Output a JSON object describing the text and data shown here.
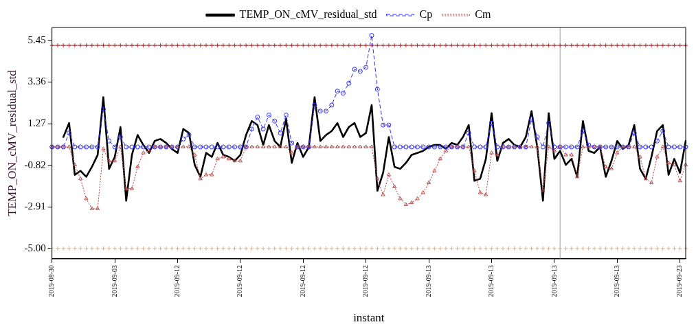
{
  "chart_data": {
    "type": "line",
    "xlabel": "instant",
    "ylabel": "TEMP_ON_cMV_residual_std",
    "categories": [
      "2019-08-30",
      null,
      null,
      null,
      null,
      null,
      null,
      null,
      null,
      null,
      null,
      "2019-09-03",
      null,
      null,
      null,
      null,
      null,
      null,
      null,
      null,
      null,
      null,
      "2019-09-12",
      null,
      null,
      null,
      null,
      null,
      null,
      null,
      null,
      null,
      null,
      "2019-09-12",
      null,
      null,
      null,
      null,
      null,
      null,
      null,
      null,
      null,
      null,
      "2019-09-12",
      null,
      null,
      null,
      null,
      null,
      null,
      null,
      null,
      null,
      null,
      "2019-09-12",
      null,
      null,
      null,
      null,
      null,
      null,
      null,
      null,
      null,
      null,
      "2019-09-13",
      null,
      null,
      null,
      null,
      null,
      null,
      null,
      null,
      null,
      null,
      "2019-09-13",
      null,
      null,
      null,
      null,
      null,
      null,
      null,
      null,
      null,
      null,
      "2019-09-13",
      null,
      null,
      null,
      null,
      null,
      null,
      null,
      null,
      null,
      null,
      "2019-09-13",
      null,
      null,
      null,
      null,
      null,
      null,
      null,
      null,
      null,
      null,
      "2019-09-23",
      null
    ],
    "ylim": [
      -5.52,
      6.1
    ],
    "yticks": [
      5.45,
      3.36,
      1.27,
      -0.82,
      -2.91,
      {
        "value": -5,
        "label": "-5.00"
      }
    ],
    "legend": "top",
    "grid": false,
    "series": [
      {
        "color": "#b03a3a",
        "marker": "cross",
        "line_style": "solid",
        "values": [
          5.2,
          5.2,
          5.2,
          5.2,
          5.2,
          5.2,
          5.2,
          5.2,
          5.2,
          5.2,
          5.2,
          5.2,
          5.2,
          5.2,
          5.2,
          5.2,
          5.2,
          5.2,
          5.2,
          5.2,
          5.2,
          5.2,
          5.2,
          5.2,
          5.2,
          5.2,
          5.2,
          5.2,
          5.2,
          5.2,
          5.2,
          5.2,
          5.2,
          5.2,
          5.2,
          5.2,
          5.2,
          5.2,
          5.2,
          5.2,
          5.2,
          5.2,
          5.2,
          5.2,
          5.2,
          5.2,
          5.2,
          5.2,
          5.2,
          5.2,
          5.2,
          5.2,
          5.2,
          5.2,
          5.2,
          5.2,
          5.2,
          5.2,
          5.2,
          5.2,
          5.2,
          5.2,
          5.2,
          5.2,
          5.2,
          5.2,
          5.2,
          5.2,
          5.2,
          5.2,
          5.2,
          5.2,
          5.2,
          5.2,
          5.2,
          5.2,
          5.2,
          5.2,
          5.2,
          5.2,
          5.2,
          5.2,
          5.2,
          5.2,
          5.2,
          5.2,
          5.2,
          5.2,
          5.2,
          5.2,
          5.2,
          5.2,
          5.2,
          5.2,
          5.2,
          5.2,
          5.2,
          5.2,
          5.2,
          5.2,
          5.2,
          5.2,
          5.2,
          5.2,
          5.2,
          5.2,
          5.2,
          5.2,
          5.2,
          5.2,
          5.2,
          5.2
        ]
      },
      {
        "type": "scatter",
        "color": "#d9b48f",
        "marker": "cross",
        "values": [
          -5,
          -5,
          -5,
          -5,
          -5,
          -5,
          -5,
          -5,
          -5,
          -5,
          -5,
          -5,
          -5,
          -5,
          -5,
          -5,
          -5,
          -5,
          -5,
          -5,
          -5,
          -5,
          -5,
          -5,
          -5,
          -5,
          -5,
          -5,
          -5,
          -5,
          -5,
          -5,
          -5,
          -5,
          -5,
          -5,
          -5,
          -5,
          -5,
          -5,
          -5,
          -5,
          -5,
          -5,
          -5,
          -5,
          -5,
          -5,
          -5,
          -5,
          -5,
          -5,
          -5,
          -5,
          -5,
          -5,
          -5,
          -5,
          -5,
          -5,
          -5,
          -5,
          -5,
          -5,
          -5,
          -5,
          -5,
          -5,
          -5,
          -5,
          -5,
          -5,
          -5,
          -5,
          -5,
          -5,
          -5,
          -5,
          -5,
          -5,
          -5,
          -5,
          -5,
          -5,
          -5,
          -5,
          -5,
          -5,
          -5,
          -5,
          -5,
          -5,
          -5,
          -5,
          -5,
          -5,
          -5,
          -5,
          -5,
          -5,
          -5,
          -5,
          -5,
          -5,
          -5,
          -5,
          -5,
          -5,
          -5,
          -5,
          -5,
          -5
        ]
      },
      {
        "name": "Cm",
        "color": "#b84a4a",
        "marker": "triangle",
        "line_style": "dotted",
        "values": [
          0.1,
          0.1,
          0.1,
          0.1,
          -0.8,
          -1.5,
          -2.5,
          -3.0,
          -3.0,
          0.0,
          -0.6,
          -0.6,
          0.1,
          -2.0,
          -2.0,
          -0.9,
          -0.2,
          -0.1,
          0.1,
          0.1,
          0.1,
          0.1,
          0.1,
          0.1,
          0.1,
          -0.3,
          -1.5,
          -1.3,
          -1.3,
          -0.5,
          -0.4,
          -0.5,
          -0.6,
          -0.6,
          0.1,
          0.1,
          0.1,
          0.1,
          0.1,
          0.1,
          0.1,
          0.1,
          -0.2,
          0.1,
          0.1,
          0.1,
          0.1,
          0.1,
          0.1,
          0.1,
          0.1,
          0.1,
          0.1,
          0.1,
          0.1,
          0.1,
          0.1,
          -1.5,
          -2.3,
          -1.3,
          -1.9,
          -2.5,
          -2.8,
          -2.7,
          -2.5,
          -2.2,
          -1.7,
          -1.1,
          -0.5,
          -0.1,
          0.1,
          0.1,
          0.1,
          0.1,
          -1.1,
          -2.2,
          -2.3,
          -0.2,
          -0.3,
          0.1,
          0.1,
          0.1,
          0.1,
          0.1,
          0.1,
          0.1,
          -2.1,
          0.1,
          -0.1,
          0.1,
          -0.3,
          -0.3,
          -1.4,
          0.1,
          0.1,
          0.1,
          0.1,
          -0.9,
          -1.0,
          -0.2,
          0.1,
          0.1,
          0.1,
          -0.4,
          -1.5,
          -1.7,
          -0.4,
          0.1,
          -0.7,
          -0.8,
          -1.6,
          -0.8
        ]
      },
      {
        "name": "Cp",
        "color": "#2b2bff",
        "marker": "circle",
        "line_style": "dashed",
        "values": [
          0.1,
          0.1,
          0.1,
          0.8,
          0.1,
          0.1,
          0.1,
          0.1,
          0.1,
          2.0,
          0.4,
          0.1,
          0.6,
          0.1,
          0.1,
          0.1,
          0.1,
          0.1,
          0.1,
          0.1,
          0.1,
          0.1,
          0.1,
          0.5,
          0.7,
          0.1,
          0.1,
          0.1,
          0.1,
          0.1,
          0.1,
          0.1,
          0.1,
          0.1,
          0.1,
          1.0,
          1.6,
          1.0,
          1.7,
          1.4,
          0.8,
          1.7,
          0.3,
          0.1,
          0.1,
          0.1,
          2.2,
          1.9,
          1.9,
          2.2,
          2.9,
          2.8,
          3.3,
          4.0,
          3.9,
          4.1,
          5.7,
          3.0,
          1.2,
          1.2,
          0.1,
          0.1,
          0.1,
          0.1,
          0.1,
          0.1,
          0.1,
          0.1,
          0.1,
          0.1,
          0.1,
          0.1,
          0.1,
          0.8,
          0.1,
          0.1,
          0.1,
          1.3,
          0.1,
          0.1,
          0.1,
          0.1,
          0.1,
          0.1,
          1.5,
          0.6,
          0.1,
          1.3,
          0.1,
          0.1,
          0.1,
          0.1,
          0.1,
          0.9,
          0.2,
          0.1,
          0.1,
          0.1,
          0.1,
          0.1,
          0.1,
          0.1,
          0.8,
          0.1,
          0.1,
          0.1,
          0.4,
          0.9,
          0.1,
          0.1,
          0.1,
          0.1
        ]
      },
      {
        "name": "TEMP_ON_cMV_residual_std",
        "color": "#000000",
        "marker": "none",
        "line_style": "solid",
        "values": [
          null,
          null,
          0.6,
          1.3,
          -1.3,
          -1.1,
          -1.4,
          -0.9,
          -0.3,
          2.6,
          -1.0,
          -0.4,
          1.1,
          -2.6,
          -0.3,
          0.7,
          0.2,
          -0.2,
          0.4,
          0.5,
          0.3,
          0.0,
          -0.2,
          1.0,
          0.8,
          -0.8,
          -1.4,
          -0.2,
          -0.4,
          0.3,
          -0.3,
          -0.4,
          -0.6,
          -0.3,
          0.7,
          1.4,
          1.2,
          0.2,
          1.2,
          0.4,
          0.1,
          1.5,
          -0.7,
          0.3,
          -0.4,
          0.1,
          2.6,
          0.4,
          0.7,
          0.9,
          1.3,
          0.6,
          1.1,
          1.3,
          0.6,
          0.8,
          2.2,
          -2.1,
          -1.2,
          0.6,
          -0.9,
          -1.0,
          -0.7,
          -0.3,
          -0.2,
          -0.1,
          0.1,
          0.2,
          0.2,
          0.0,
          0.3,
          0.2,
          0.6,
          1.2,
          -1.6,
          -1.5,
          -0.5,
          1.8,
          -0.6,
          0.3,
          0.5,
          0.2,
          0.1,
          0.6,
          1.9,
          0.1,
          -2.6,
          1.8,
          -0.5,
          -0.1,
          -0.8,
          -0.5,
          -1.4,
          1.4,
          -0.1,
          -0.2,
          0.1,
          -1.4,
          -0.6,
          0.4,
          0.0,
          0.2,
          1.2,
          -1.0,
          -1.5,
          -0.4,
          0.9,
          1.2,
          -1.3,
          -0.5,
          -1.2,
          0.4
        ]
      }
    ]
  }
}
